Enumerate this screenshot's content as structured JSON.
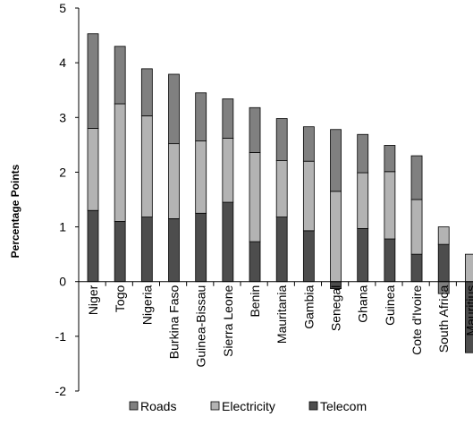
{
  "chart_data": {
    "type": "bar",
    "stacked": true,
    "title": "",
    "xlabel": "",
    "ylabel": "Percentage Points",
    "ylim": [
      -2,
      5
    ],
    "yticks": [
      "-2",
      "-1",
      "0",
      "1",
      "2",
      "3",
      "4",
      "5"
    ],
    "grid": false,
    "legend_position": "bottom",
    "categories": [
      "Niger",
      "Togo",
      "Nigeria",
      "Burkina Faso",
      "Guinea-Bissau",
      "Sierra Leone",
      "Benin",
      "Mauritania",
      "Gambia",
      "Senegal",
      "Ghana",
      "Guinea",
      "Cote d'Ivoire",
      "South Africa",
      "Mauritius"
    ],
    "series": [
      {
        "name": "Telecom",
        "color": "#4d4d4d",
        "values": [
          1.3,
          1.1,
          1.18,
          1.15,
          1.25,
          1.45,
          0.73,
          1.18,
          0.93,
          -0.13,
          0.97,
          0.78,
          0.5,
          0.68,
          -1.3
        ]
      },
      {
        "name": "Electricity",
        "color": "#b3b3b3",
        "values": [
          1.5,
          2.15,
          1.85,
          1.37,
          1.32,
          1.17,
          1.63,
          1.03,
          1.27,
          1.65,
          1.02,
          1.23,
          1.0,
          0.32,
          0.5
        ]
      },
      {
        "name": "Roads",
        "color": "#808080",
        "values": [
          1.73,
          1.05,
          0.86,
          1.27,
          0.88,
          0.72,
          0.82,
          0.77,
          0.63,
          1.13,
          0.7,
          0.48,
          0.8,
          -0.22,
          0.0
        ]
      }
    ],
    "legend": [
      "Roads",
      "Electricity",
      "Telecom"
    ]
  }
}
